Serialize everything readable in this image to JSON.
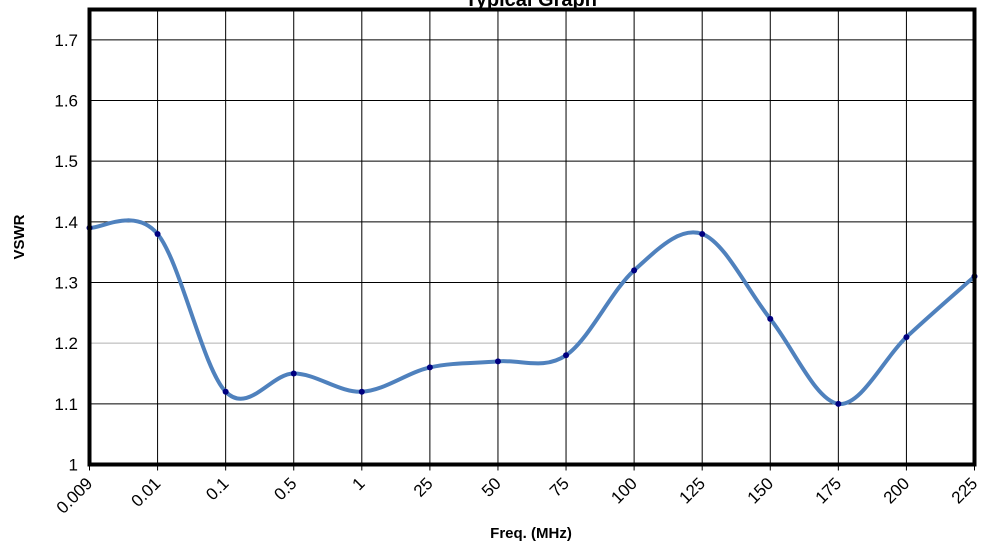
{
  "chart_data": {
    "type": "line",
    "title": "Typical Graph",
    "xlabel": "Freq. (MHz)",
    "ylabel": "VSWR",
    "categories": [
      "0.009",
      "0.01",
      "0.1",
      "0.5",
      "1",
      "25",
      "50",
      "75",
      "100",
      "125",
      "150",
      "175",
      "200",
      "225"
    ],
    "y_ticks": [
      "1",
      "1.1",
      "1.2",
      "1.3",
      "1.4",
      "1.5",
      "1.6",
      "1.7"
    ],
    "ylim": [
      1,
      1.75
    ],
    "grid": true,
    "legend": "none",
    "series": [
      {
        "values": [
          1.39,
          1.38,
          1.12,
          1.15,
          1.12,
          1.16,
          1.17,
          1.18,
          1.32,
          1.38,
          1.24,
          1.1,
          1.21,
          1.31
        ]
      }
    ],
    "colors": {
      "line": "#4f81bd",
      "marker": "#000080",
      "frame": "#000000"
    }
  }
}
